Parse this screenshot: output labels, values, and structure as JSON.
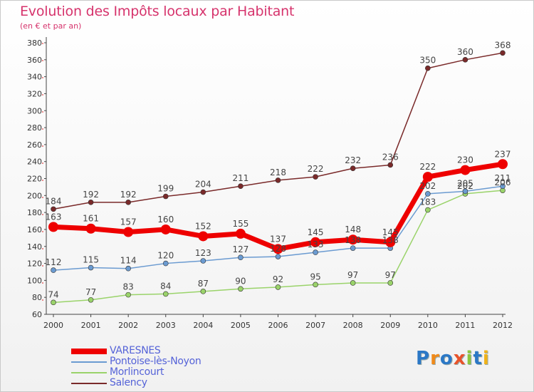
{
  "title": "Evolution des Impôts locaux par Habitant",
  "subtitle": "(en € et par an)",
  "logo_text": "Proxiti",
  "chart_data": {
    "type": "line",
    "title": "Evolution des Impôts locaux par Habitant",
    "subtitle": "(en € et par an)",
    "xlabel": "",
    "ylabel": "",
    "x": [
      "2000",
      "2001",
      "2002",
      "2003",
      "2004",
      "2005",
      "2006",
      "2007",
      "2008",
      "2009",
      "2010",
      "2011",
      "2012"
    ],
    "yticks": [
      60,
      80,
      100,
      120,
      140,
      160,
      180,
      200,
      220,
      240,
      260,
      280,
      300,
      320,
      340,
      360,
      380
    ],
    "ylim": [
      60,
      380
    ],
    "grid": false,
    "legend_position": "bottom-left",
    "series": [
      {
        "name": "VARESNES",
        "color": "#ee0000",
        "values": [
          163,
          161,
          157,
          160,
          152,
          155,
          137,
          145,
          148,
          145,
          222,
          230,
          237
        ],
        "labels": [
          "163",
          "161",
          "157",
          "160",
          "152",
          "155",
          "137",
          "145",
          "148",
          "145",
          "222",
          "230",
          "237"
        ]
      },
      {
        "name": "Pontoise-lès-Noyon",
        "color": "#6b9bd1",
        "values": [
          112,
          115,
          114,
          120,
          123,
          127,
          128,
          133,
          138,
          138,
          202,
          205,
          211
        ],
        "labels": [
          "112",
          "115",
          "114",
          "120",
          "123",
          "127",
          "128",
          "133",
          "138",
          "138",
          "202",
          "205",
          "211"
        ]
      },
      {
        "name": "Morlincourt",
        "color": "#9ad36a",
        "values": [
          74,
          77,
          83,
          84,
          87,
          90,
          92,
          95,
          97,
          97,
          183,
          202,
          206
        ],
        "labels": [
          "74",
          "77",
          "83",
          "84",
          "87",
          "90",
          "92",
          "95",
          "97",
          "97",
          "183",
          "202",
          "206"
        ]
      },
      {
        "name": "Salency",
        "color": "#7a2a2a",
        "values": [
          184,
          192,
          192,
          199,
          204,
          211,
          218,
          222,
          232,
          236,
          350,
          360,
          368
        ],
        "labels": [
          "184",
          "192",
          "192",
          "199",
          "204",
          "211",
          "218",
          "222",
          "232",
          "236",
          "350",
          "360",
          "368"
        ]
      }
    ]
  }
}
